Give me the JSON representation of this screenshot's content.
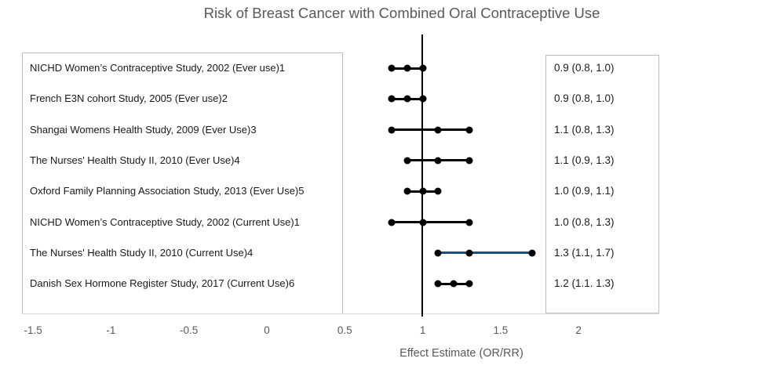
{
  "chart_data": {
    "type": "scatter",
    "variant": "forest-plot",
    "title": "Risk of Breast Cancer with Combined Oral Contraceptive Use",
    "xlabel": "Effect Estimate (OR/RR)",
    "x_ticks": [
      -1.5,
      -1,
      -0.5,
      0,
      0.5,
      1,
      1.5,
      2
    ],
    "x_tick_labels": [
      "-1.5",
      "-1",
      "-0.5",
      "0",
      "0.5",
      "1",
      "1.5",
      "2"
    ],
    "xlim": [
      -1.72,
      2.52
    ],
    "reference_line_x": 1,
    "grid": false,
    "legend": false,
    "studies": [
      {
        "label": "NICHD Women’s Contraceptive Study, 2002 (Ever use)1",
        "estimate": 0.9,
        "ci_low": 0.8,
        "ci_high": 1.0,
        "value_label": "0.9 (0.8, 1.0)",
        "line_color": "#000000"
      },
      {
        "label": "French E3N cohort Study, 2005  (Ever use)2",
        "estimate": 0.9,
        "ci_low": 0.8,
        "ci_high": 1.0,
        "value_label": "0.9 (0.8, 1.0)",
        "line_color": "#000000"
      },
      {
        "label": "Shangai Womens Health Study, 2009 (Ever Use)3",
        "estimate": 1.1,
        "ci_low": 0.8,
        "ci_high": 1.3,
        "value_label": "1.1 (0.8, 1.3)",
        "line_color": "#000000"
      },
      {
        "label": "The Nurses' Health Study II, 2010 (Ever Use)4",
        "estimate": 1.1,
        "ci_low": 0.9,
        "ci_high": 1.3,
        "value_label": "1.1 (0.9, 1.3)",
        "line_color": "#000000"
      },
      {
        "label": "Oxford Family Planning Association Study, 2013 (Ever Use)5",
        "estimate": 1.0,
        "ci_low": 0.9,
        "ci_high": 1.1,
        "value_label": "1.0 (0.9, 1.1)",
        "line_color": "#000000"
      },
      {
        "label": "NICHD Women’s Contraceptive Study, 2002  (Current Use)1",
        "estimate": 1.0,
        "ci_low": 0.8,
        "ci_high": 1.3,
        "value_label": "1.0 (0.8, 1.3)",
        "line_color": "#000000"
      },
      {
        "label": "The Nurses' Health Study II, 2010  (Current Use)4",
        "estimate": 1.3,
        "ci_low": 1.1,
        "ci_high": 1.7,
        "value_label": "1.3 (1.1, 1.7)",
        "line_color": "#1f4e79"
      },
      {
        "label": "Danish Sex Hormone Register Study, 2017 (Current Use)6",
        "estimate": 1.2,
        "ci_low": 1.1,
        "ci_high": 1.3,
        "value_label": "1.2 (1.1. 1.3)",
        "line_color": "#000000"
      }
    ]
  },
  "colors": {
    "title_text": "#595959",
    "axis_text": "#595959",
    "label_text": "#1a1a1a",
    "marker": "#000000",
    "default_line": "#000000",
    "highlight_line": "#1f4e79",
    "box_border": "#bfbfbf",
    "axis_line": "#d9d9d9",
    "reference_line": "#000000"
  }
}
